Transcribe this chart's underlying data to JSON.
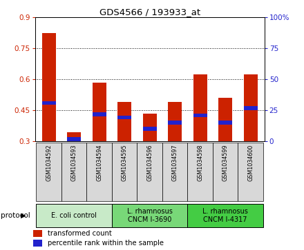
{
  "title": "GDS4566 / 193933_at",
  "samples": [
    "GSM1034592",
    "GSM1034593",
    "GSM1034594",
    "GSM1034595",
    "GSM1034596",
    "GSM1034597",
    "GSM1034598",
    "GSM1034599",
    "GSM1034600"
  ],
  "red_values": [
    0.825,
    0.345,
    0.585,
    0.49,
    0.435,
    0.49,
    0.625,
    0.51,
    0.625
  ],
  "blue_values": [
    0.485,
    0.31,
    0.43,
    0.415,
    0.36,
    0.39,
    0.425,
    0.39,
    0.46
  ],
  "ymin": 0.3,
  "ymax": 0.9,
  "y_ticks": [
    0.3,
    0.45,
    0.6,
    0.75,
    0.9
  ],
  "y2_ticks": [
    0,
    25,
    50,
    75,
    100
  ],
  "protocols": [
    {
      "label": "E. coli control",
      "indices": [
        0,
        1,
        2
      ],
      "color": "#c8eac8"
    },
    {
      "label": "L. rhamnosus\nCNCM I-3690",
      "indices": [
        3,
        4,
        5
      ],
      "color": "#78d878"
    },
    {
      "label": "L. rhamnosus\nCNCM I-4317",
      "indices": [
        6,
        7,
        8
      ],
      "color": "#44cc44"
    }
  ],
  "bar_width": 0.55,
  "blue_bar_height": 0.018,
  "red_color": "#cc2200",
  "blue_color": "#2222cc",
  "grid_color": "#000000",
  "sample_bg_color": "#d8d8d8",
  "tick_label_color_left": "#cc2200",
  "tick_label_color_right": "#2222cc",
  "legend_red_label": "transformed count",
  "legend_blue_label": "percentile rank within the sample",
  "protocol_label": "protocol"
}
